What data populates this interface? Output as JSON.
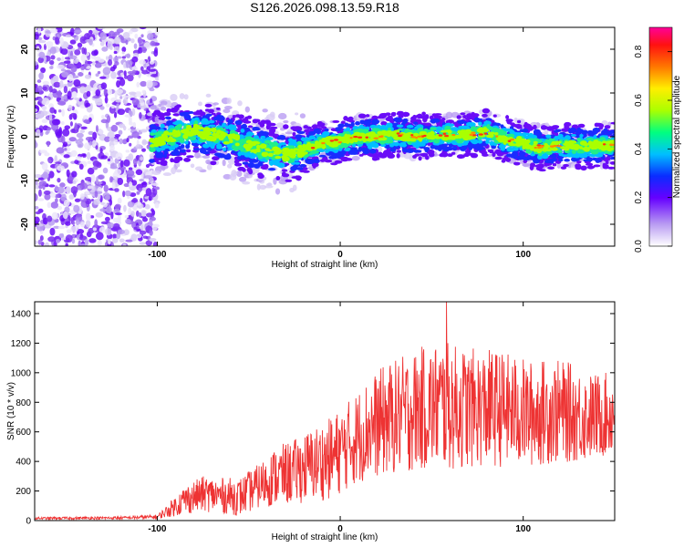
{
  "title": "S126.2026.098.13.59.R18",
  "chart_data": [
    {
      "type": "heatmap",
      "xlabel": "Height of straight line (km)",
      "ylabel": "Frequency (Hz)",
      "xlim": [
        -167,
        150
      ],
      "ylim": [
        -25,
        25
      ],
      "xticks": [
        -100,
        0,
        100
      ],
      "yticks": [
        -20,
        -10,
        0,
        10,
        20
      ],
      "colorbar": {
        "label": "Normalized spectral amplitude",
        "range": [
          0,
          0.9
        ],
        "ticks": [
          "0.0",
          "0.2",
          "0.4",
          "0.6",
          "0.8"
        ]
      },
      "ridge_frequency": {
        "x": [
          -105,
          -90,
          -80,
          -70,
          -60,
          -50,
          -40,
          -30,
          -20,
          -10,
          0,
          10,
          20,
          30,
          40,
          50,
          60,
          70,
          80,
          90,
          100,
          110,
          120,
          130,
          140,
          148
        ],
        "y": [
          -1.5,
          0.5,
          1.5,
          0.5,
          -0.5,
          -2,
          -3,
          -4,
          -3,
          -1.5,
          -1,
          0,
          0,
          0.5,
          0,
          0.5,
          0.5,
          0.5,
          1,
          -0.5,
          -1.5,
          -2.5,
          -2,
          -2,
          -2,
          -2
        ]
      }
    },
    {
      "type": "line",
      "xlabel": "Height of straight line (km)",
      "ylabel": "SNR (10 * v/v)",
      "xlim": [
        -167,
        150
      ],
      "ylim": [
        0,
        1480
      ],
      "xticks": [
        -100,
        0,
        100
      ],
      "yticks": [
        0,
        200,
        400,
        600,
        800,
        1000,
        1200,
        1400
      ],
      "color": "#ee3333",
      "envelope": {
        "x": [
          -167,
          -120,
          -100,
          -95,
          -85,
          -75,
          -65,
          -55,
          -45,
          -35,
          -25,
          -15,
          -5,
          5,
          15,
          25,
          35,
          45,
          55,
          65,
          75,
          85,
          95,
          105,
          115,
          125,
          135,
          148
        ],
        "mean": [
          15,
          18,
          25,
          60,
          140,
          180,
          170,
          160,
          230,
          300,
          330,
          380,
          420,
          520,
          620,
          680,
          720,
          760,
          780,
          760,
          760,
          760,
          740,
          720,
          740,
          730,
          700,
          720
        ],
        "amplitude": [
          8,
          10,
          15,
          40,
          100,
          120,
          120,
          130,
          150,
          200,
          220,
          250,
          280,
          300,
          340,
          380,
          400,
          420,
          440,
          420,
          400,
          400,
          380,
          360,
          360,
          340,
          300,
          280
        ]
      },
      "peak": {
        "x": 58,
        "y": 1480
      }
    }
  ]
}
